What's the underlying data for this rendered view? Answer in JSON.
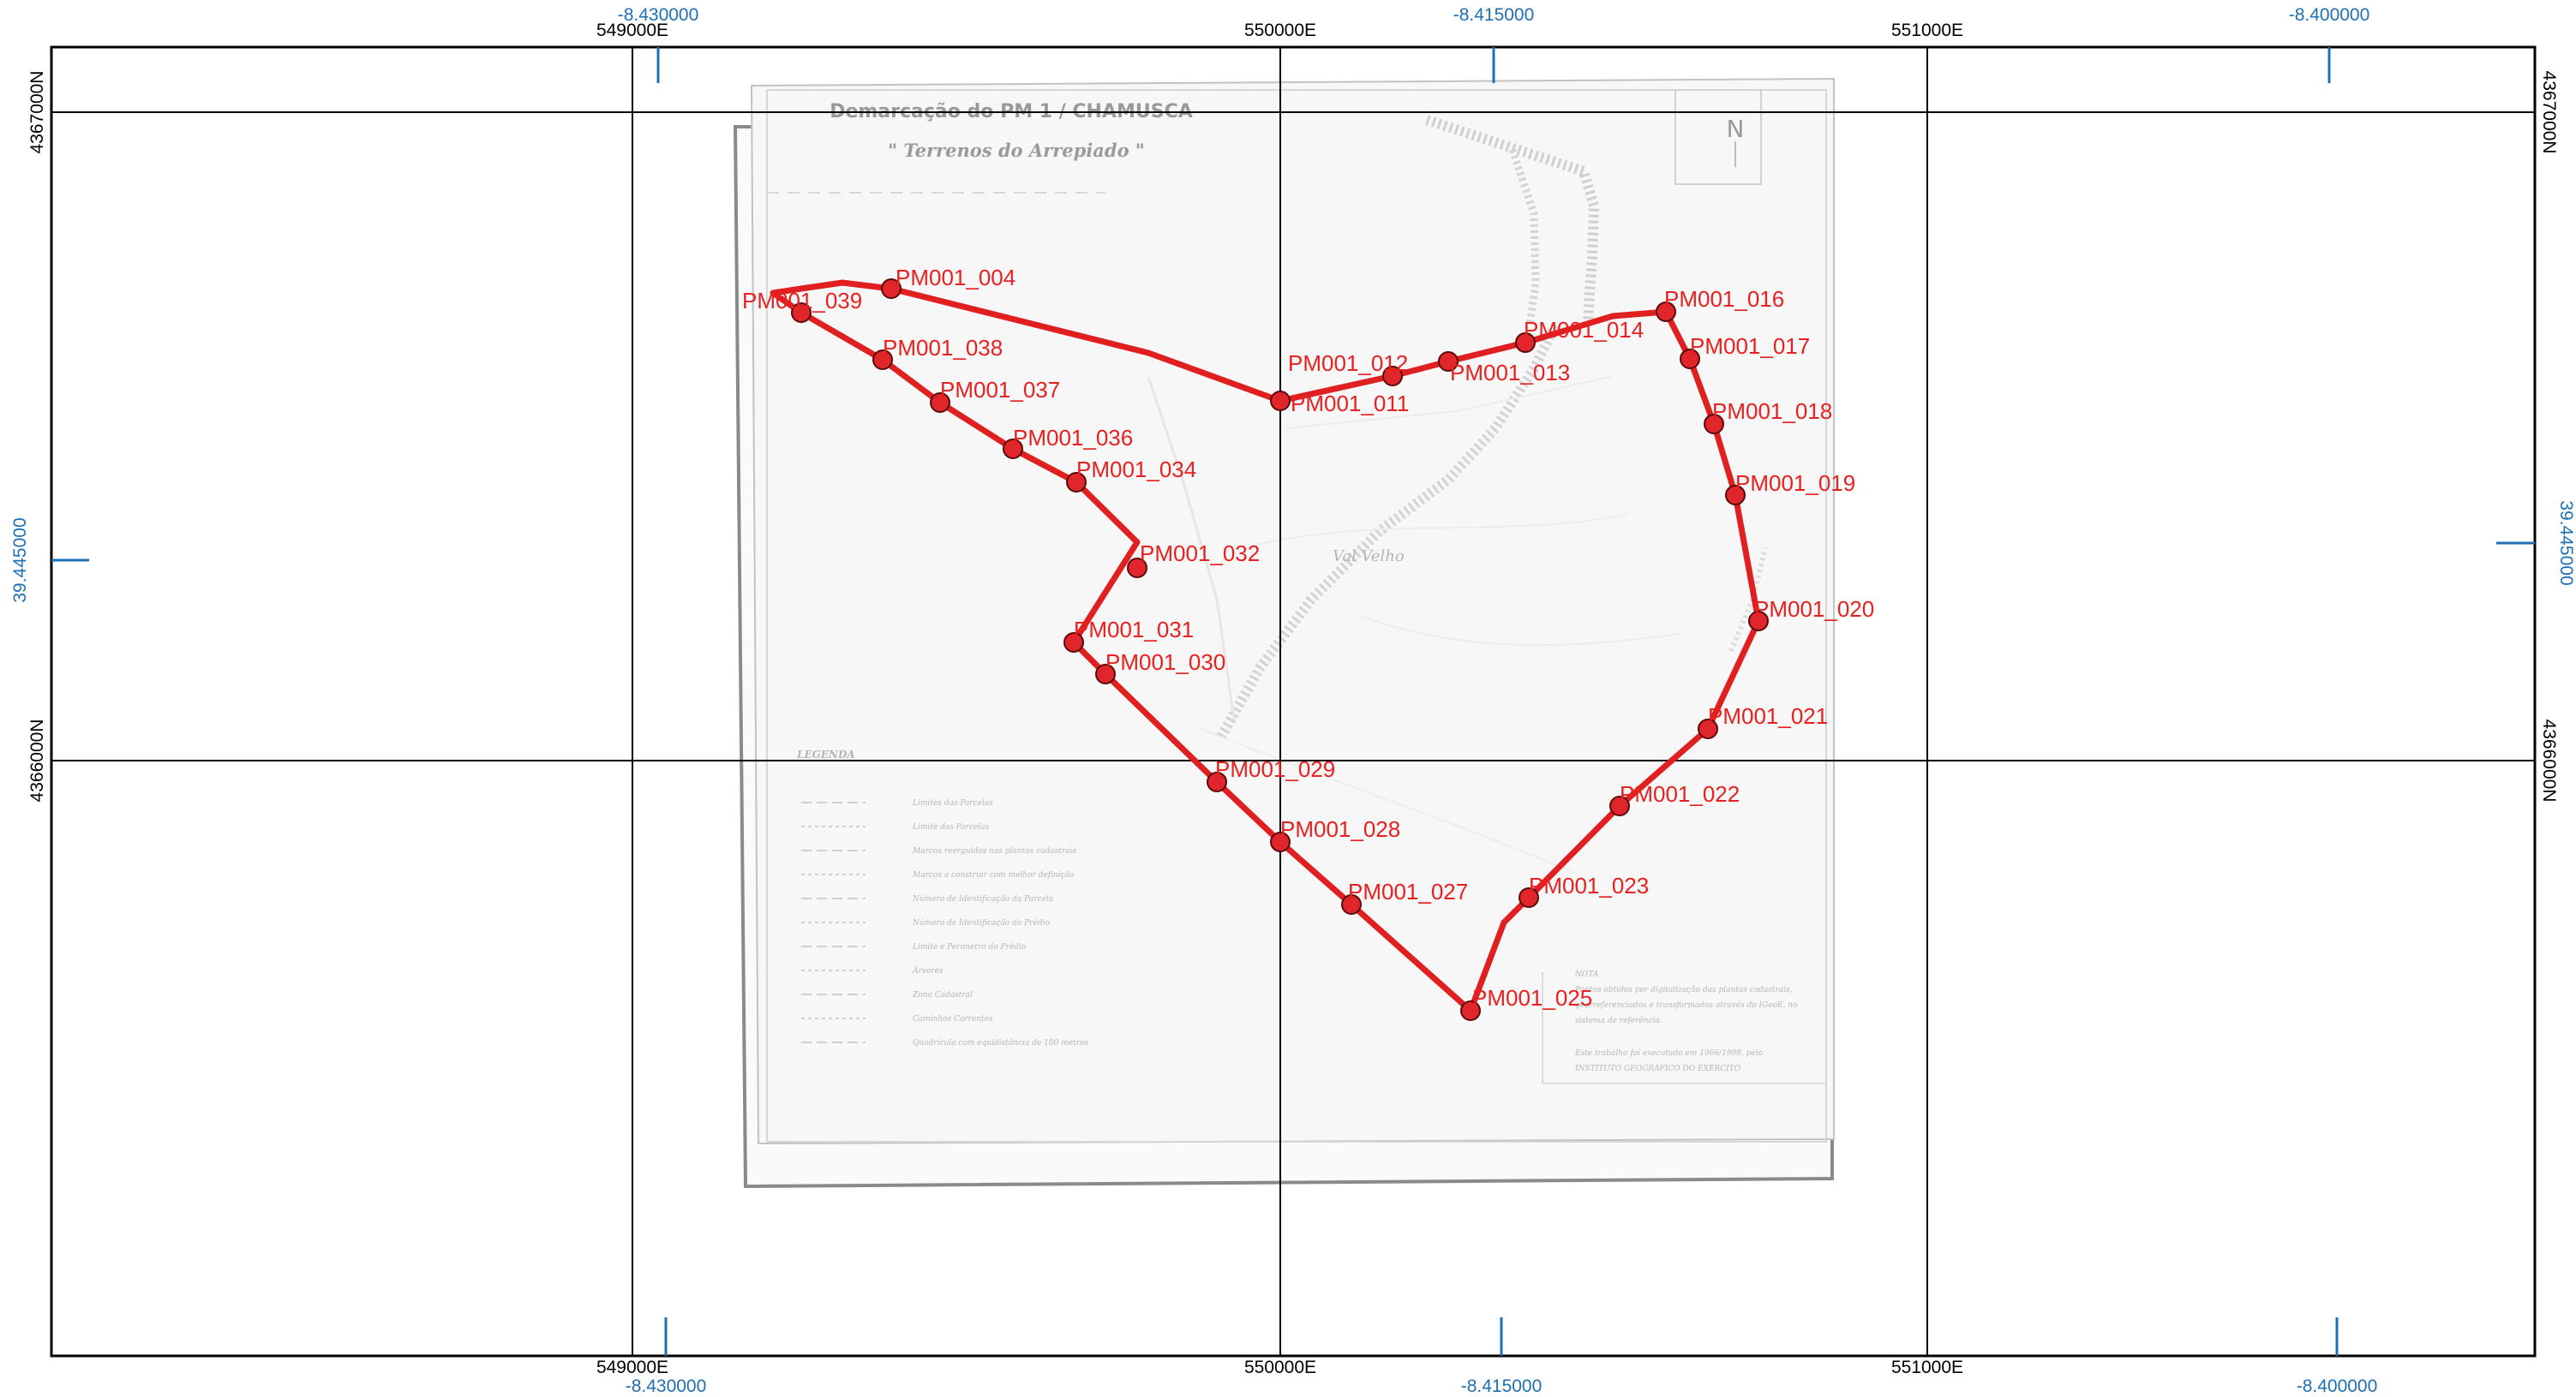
{
  "map": {
    "scan_title": "Demarcação do PM 1 / CHAMUSCA",
    "scan_subtitle": "\" Terrenos do Arrepiado \"",
    "north_letter": "N",
    "legend_heading": "LEGENDA",
    "legend_items": [
      "Limites das Parcelas",
      "Limite das Parcelas",
      "Marcos reerguidos nas plantas cadastrais",
      "Marcos a construir com melhor definição",
      "Número de Identificação da Parcela",
      "Número de Identificação do Prédio",
      "Limite e Perímetro do Prédio",
      "Árvores",
      "Zona Cadastral",
      "Caminhos Correntes",
      "Quadrícula com equidistância de 100 metros"
    ],
    "note_lines": [
      "NOTA",
      "Pontos obtidos por digitalização das plantas cadastrais,",
      "georreferenciados e transformados através do IGeoE, no",
      "sistema de referência.",
      "Este trabalho foi executado em 1966/1998, pelo",
      "INSTITUTO GEOGRÁFICO DO EXÉRCITO"
    ],
    "grid": {
      "x_labels": [
        "549000E",
        "550000E",
        "551000E"
      ],
      "y_labels": [
        "4367000N",
        "4366000N"
      ],
      "lon_labels": [
        "-8.430000",
        "-8.415000",
        "-8.400000"
      ],
      "lat_labels": [
        "39.445000"
      ]
    },
    "colors": {
      "boundary": "#e02020",
      "point_fill": "#e0262a",
      "grid": "#000000",
      "geo_tick": "#1f6fb5"
    },
    "points": [
      {
        "id": "PM001_004",
        "label": "PM001_004"
      },
      {
        "id": "PM001_011",
        "label": "PM001_011"
      },
      {
        "id": "PM001_012",
        "label": "PM001_012"
      },
      {
        "id": "PM001_013",
        "label": "PM001_013"
      },
      {
        "id": "PM001_014",
        "label": "PM001_014"
      },
      {
        "id": "PM001_016",
        "label": "PM001_016"
      },
      {
        "id": "PM001_017",
        "label": "PM001_017"
      },
      {
        "id": "PM001_018",
        "label": "PM001_018"
      },
      {
        "id": "PM001_019",
        "label": "PM001_019"
      },
      {
        "id": "PM001_020",
        "label": "PM001_020"
      },
      {
        "id": "PM001_021",
        "label": "PM001_021"
      },
      {
        "id": "PM001_022",
        "label": "PM001_022"
      },
      {
        "id": "PM001_023",
        "label": "PM001_023"
      },
      {
        "id": "PM001_025",
        "label": "PM001_025"
      },
      {
        "id": "PM001_027",
        "label": "PM001_027"
      },
      {
        "id": "PM001_028",
        "label": "PM001_028"
      },
      {
        "id": "PM001_029",
        "label": "PM001_029"
      },
      {
        "id": "PM001_030",
        "label": "PM001_030"
      },
      {
        "id": "PM001_031",
        "label": "PM001_031"
      },
      {
        "id": "PM001_032",
        "label": "PM001_032"
      },
      {
        "id": "PM001_034",
        "label": "PM001_034"
      },
      {
        "id": "PM001_036",
        "label": "PM001_036"
      },
      {
        "id": "PM001_037",
        "label": "PM001_037"
      },
      {
        "id": "PM001_038",
        "label": "PM001_038"
      },
      {
        "id": "PM001_039",
        "label": "PM001_039"
      }
    ]
  }
}
